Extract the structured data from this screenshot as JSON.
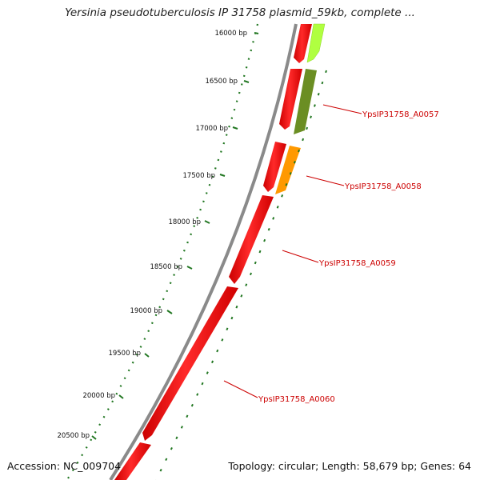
{
  "title": "Yersinia pseudotuberculosis IP 31758 plasmid_59kb, complete ...",
  "footer": {
    "accession": "Accession: NC_009704",
    "summary": "Topology: circular; Length: 58,679 bp; Genes: 64"
  },
  "colors": {
    "red_gene": "#ff0000",
    "light_green_gene": "#b0ff40",
    "dark_green_gene": "#6b8e23",
    "orange_gene": "#ff9900",
    "backbone": "#888888",
    "ticks": "#227722",
    "labels": "#cc0000"
  },
  "scale_ticks": [
    "16000 bp",
    "16500 bp",
    "17000 bp",
    "17500 bp",
    "18000 bp",
    "18500 bp",
    "19000 bp",
    "19500 bp",
    "20000 bp",
    "20500 bp"
  ],
  "gene_labels": [
    "YpsIP31758_A0057",
    "YpsIP31758_A0058",
    "YpsIP31758_A0059",
    "YpsIP31758_A0060"
  ]
}
